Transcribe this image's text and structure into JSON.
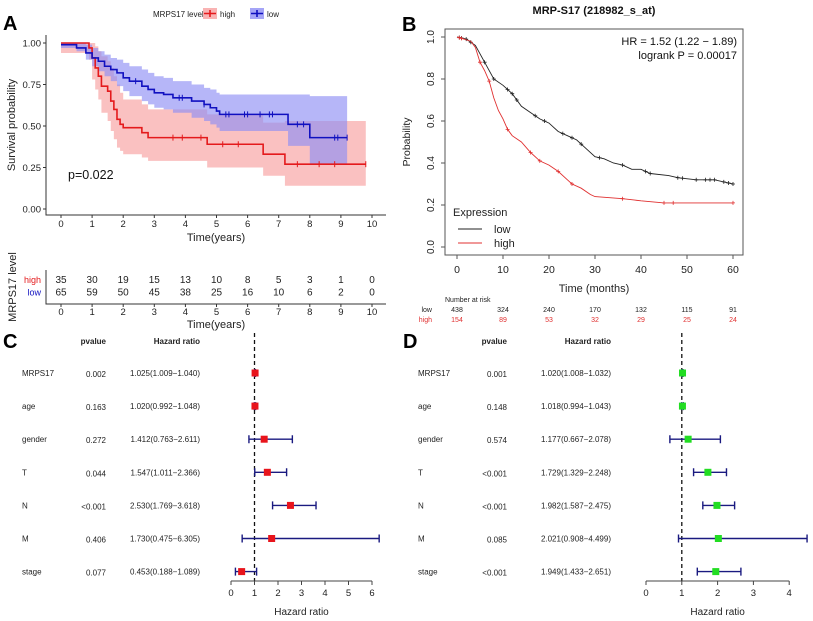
{
  "chart_data": [
    {
      "panel_label": "A",
      "type": "line",
      "legend_title": "MRPS17 level",
      "xlabel": "Time(years)",
      "ylabel": "Survival probability",
      "xlim": [
        0,
        10
      ],
      "ylim": [
        0,
        1
      ],
      "xticks": [
        "0",
        "1",
        "2",
        "3",
        "4",
        "5",
        "6",
        "7",
        "8",
        "9",
        "10"
      ],
      "yticks": [
        "0.00",
        "0.25",
        "0.50",
        "0.75",
        "1.00"
      ],
      "annotation": "p=0.022",
      "series": [
        {
          "name": "high",
          "color": "#e41a1c",
          "band_color": "#f8a0a0",
          "t": [
            0,
            0.9,
            1.0,
            1.1,
            1.2,
            1.3,
            1.5,
            1.6,
            1.7,
            1.8,
            1.9,
            2.0,
            2.6,
            2.8,
            4.7,
            6.5,
            7.2
          ],
          "end": 9.8,
          "s": [
            1,
            0.97,
            0.91,
            0.85,
            0.8,
            0.74,
            0.71,
            0.65,
            0.6,
            0.54,
            0.51,
            0.49,
            0.46,
            0.43,
            0.39,
            0.33,
            0.27
          ],
          "lo": [
            0.94,
            0.9,
            0.78,
            0.72,
            0.66,
            0.58,
            0.53,
            0.47,
            0.42,
            0.37,
            0.35,
            0.33,
            0.31,
            0.29,
            0.25,
            0.2,
            0.14
          ],
          "hi": [
            1,
            1,
            1,
            0.98,
            0.95,
            0.92,
            0.89,
            0.85,
            0.8,
            0.75,
            0.7,
            0.66,
            0.63,
            0.6,
            0.57,
            0.52,
            0.53
          ],
          "censor": [
            3.6,
            3.9,
            4.5,
            5.2,
            5.7,
            7.6,
            8.3,
            8.8,
            9.8
          ]
        },
        {
          "name": "low",
          "color": "#1010c0",
          "band_color": "#8f8ff5",
          "t": [
            0,
            0.5,
            0.8,
            1.0,
            1.2,
            1.4,
            1.6,
            1.8,
            2.0,
            2.2,
            2.6,
            2.8,
            3.0,
            3.3,
            3.6,
            4.2,
            4.6,
            4.8,
            5.0,
            5.1,
            7.3,
            8.0
          ],
          "end": 9.2,
          "s": [
            0.99,
            0.97,
            0.94,
            0.91,
            0.89,
            0.86,
            0.84,
            0.82,
            0.79,
            0.77,
            0.74,
            0.72,
            0.7,
            0.69,
            0.67,
            0.65,
            0.63,
            0.61,
            0.59,
            0.57,
            0.51,
            0.43
          ],
          "lo": [
            0.97,
            0.95,
            0.9,
            0.86,
            0.83,
            0.8,
            0.77,
            0.74,
            0.71,
            0.68,
            0.65,
            0.63,
            0.61,
            0.6,
            0.58,
            0.55,
            0.53,
            0.51,
            0.49,
            0.47,
            0.38,
            0.27
          ],
          "hi": [
            1,
            1,
            0.99,
            0.97,
            0.95,
            0.93,
            0.91,
            0.9,
            0.88,
            0.86,
            0.84,
            0.82,
            0.8,
            0.79,
            0.77,
            0.75,
            0.73,
            0.72,
            0.7,
            0.69,
            0.69,
            0.68
          ],
          "censor": [
            2.4,
            3.8,
            3.9,
            4.6,
            5.3,
            5.4,
            5.9,
            6.0,
            6.4,
            6.7,
            6.8,
            7.6,
            7.8,
            8.8,
            8.9,
            9.2
          ]
        }
      ],
      "risk_table": {
        "ylabel": "MRPS17 level",
        "xlabel": "Time(years)",
        "xticks": [
          "0",
          "1",
          "2",
          "3",
          "4",
          "5",
          "6",
          "7",
          "8",
          "9",
          "10"
        ],
        "rows": [
          {
            "name": "high",
            "color": "#e41a1c",
            "values": [
              "35",
              "30",
              "19",
              "15",
              "13",
              "10",
              "8",
              "5",
              "3",
              "1",
              "0"
            ]
          },
          {
            "name": "low",
            "color": "#1010c0",
            "values": [
              "65",
              "59",
              "50",
              "45",
              "38",
              "25",
              "16",
              "10",
              "6",
              "2",
              "0"
            ]
          }
        ]
      }
    },
    {
      "panel_label": "B",
      "type": "line",
      "title": "MRP-S17 (218982_s_at)",
      "xlabel": "Time (months)",
      "ylabel": "Probability",
      "xlim": [
        0,
        60
      ],
      "ylim": [
        0,
        1
      ],
      "xticks": [
        "0",
        "10",
        "20",
        "30",
        "40",
        "50",
        "60"
      ],
      "yticks": [
        "0.0",
        "0.2",
        "0.4",
        "0.6",
        "0.8",
        "1.0"
      ],
      "annotations": [
        "HR = 1.52 (1.22 − 1.89)",
        "logrank P = 0.00017"
      ],
      "legend_title": "Expression",
      "series": [
        {
          "name": "low",
          "color": "#222222",
          "t": [
            0,
            2,
            4,
            6,
            8,
            10,
            12,
            14,
            16,
            18,
            20,
            22,
            24,
            26,
            28,
            30,
            32,
            34,
            36,
            38,
            40,
            42,
            46,
            48,
            52,
            56,
            58,
            60
          ],
          "s": [
            1,
            0.99,
            0.96,
            0.88,
            0.8,
            0.77,
            0.73,
            0.67,
            0.64,
            0.61,
            0.59,
            0.55,
            0.53,
            0.51,
            0.47,
            0.43,
            0.42,
            0.4,
            0.39,
            0.37,
            0.37,
            0.35,
            0.34,
            0.33,
            0.32,
            0.32,
            0.31,
            0.3
          ],
          "censor": [
            0.5,
            1,
            2,
            3,
            6,
            8,
            11,
            12,
            13,
            17,
            19,
            23,
            25,
            27,
            31,
            36,
            41,
            42,
            48,
            49,
            52,
            54,
            55,
            56,
            58,
            59,
            60
          ]
        },
        {
          "name": "high",
          "color": "#e03030",
          "t": [
            0,
            3,
            4,
            5,
            6,
            7,
            8,
            9,
            10,
            11,
            12,
            14,
            16,
            18,
            20,
            22,
            24,
            25,
            27,
            29,
            30,
            36,
            40,
            45,
            54,
            60
          ],
          "s": [
            1,
            0.98,
            0.95,
            0.88,
            0.84,
            0.79,
            0.71,
            0.65,
            0.61,
            0.56,
            0.53,
            0.5,
            0.45,
            0.41,
            0.39,
            0.36,
            0.32,
            0.3,
            0.28,
            0.25,
            0.24,
            0.23,
            0.22,
            0.21,
            0.21,
            0.21
          ],
          "censor": [
            0.5,
            1,
            5,
            7,
            11,
            16,
            18,
            22,
            25,
            36,
            45,
            47,
            60
          ]
        }
      ],
      "risk_table": {
        "title": "Number at risk",
        "rows": [
          {
            "name": "low",
            "color": "#222222",
            "values": [
              "438",
              "324",
              "240",
              "170",
              "132",
              "115",
              "91"
            ]
          },
          {
            "name": "high",
            "color": "#e03030",
            "values": [
              "154",
              "89",
              "53",
              "32",
              "29",
              "25",
              "24"
            ]
          }
        ]
      }
    },
    {
      "panel_label": "C",
      "type": "forest",
      "headers": {
        "pvalue": "pvalue",
        "hr": "Hazard ratio"
      },
      "xlabel": "Hazard ratio",
      "xlim": [
        0,
        6
      ],
      "xticks": [
        "0",
        "1",
        "2",
        "3",
        "4",
        "5",
        "6"
      ],
      "point_color": "#e8141c",
      "whisker_color": "#1a1a80",
      "rows": [
        {
          "variable": "MRPS17",
          "pvalue": "0.002",
          "hr_text": "1.025(1.009−1.040)",
          "hr": 1.025,
          "lo": 1.009,
          "hi": 1.04
        },
        {
          "variable": "age",
          "pvalue": "0.163",
          "hr_text": "1.020(0.992−1.048)",
          "hr": 1.02,
          "lo": 0.992,
          "hi": 1.048
        },
        {
          "variable": "gender",
          "pvalue": "0.272",
          "hr_text": "1.412(0.763−2.611)",
          "hr": 1.412,
          "lo": 0.763,
          "hi": 2.611
        },
        {
          "variable": "T",
          "pvalue": "0.044",
          "hr_text": "1.547(1.011−2.366)",
          "hr": 1.547,
          "lo": 1.011,
          "hi": 2.366
        },
        {
          "variable": "N",
          "pvalue": "<0.001",
          "hr_text": "2.530(1.769−3.618)",
          "hr": 2.53,
          "lo": 1.769,
          "hi": 3.618
        },
        {
          "variable": "M",
          "pvalue": "0.406",
          "hr_text": "1.730(0.475−6.305)",
          "hr": 1.73,
          "lo": 0.475,
          "hi": 6.305
        },
        {
          "variable": "stage",
          "pvalue": "0.077",
          "hr_text": "0.453(0.188−1.089)",
          "hr": 0.453,
          "lo": 0.188,
          "hi": 1.089
        }
      ]
    },
    {
      "panel_label": "D",
      "type": "forest",
      "headers": {
        "pvalue": "pvalue",
        "hr": "Hazard ratio"
      },
      "xlabel": "Hazard ratio",
      "xlim": [
        0,
        4
      ],
      "xticks": [
        "0",
        "1",
        "2",
        "3",
        "4"
      ],
      "point_color": "#22dd22",
      "whisker_color": "#1a1a80",
      "rows": [
        {
          "variable": "MRPS17",
          "pvalue": "0.001",
          "hr_text": "1.020(1.008−1.032)",
          "hr": 1.02,
          "lo": 1.008,
          "hi": 1.032
        },
        {
          "variable": "age",
          "pvalue": "0.148",
          "hr_text": "1.018(0.994−1.043)",
          "hr": 1.018,
          "lo": 0.994,
          "hi": 1.043
        },
        {
          "variable": "gender",
          "pvalue": "0.574",
          "hr_text": "1.177(0.667−2.078)",
          "hr": 1.177,
          "lo": 0.667,
          "hi": 2.078
        },
        {
          "variable": "T",
          "pvalue": "<0.001",
          "hr_text": "1.729(1.329−2.248)",
          "hr": 1.729,
          "lo": 1.329,
          "hi": 2.248
        },
        {
          "variable": "N",
          "pvalue": "<0.001",
          "hr_text": "1.982(1.587−2.475)",
          "hr": 1.982,
          "lo": 1.587,
          "hi": 2.475
        },
        {
          "variable": "M",
          "pvalue": "0.085",
          "hr_text": "2.021(0.908−4.499)",
          "hr": 2.021,
          "lo": 0.908,
          "hi": 4.499
        },
        {
          "variable": "stage",
          "pvalue": "<0.001",
          "hr_text": "1.949(1.433−2.651)",
          "hr": 1.949,
          "lo": 1.433,
          "hi": 2.651
        }
      ]
    }
  ]
}
